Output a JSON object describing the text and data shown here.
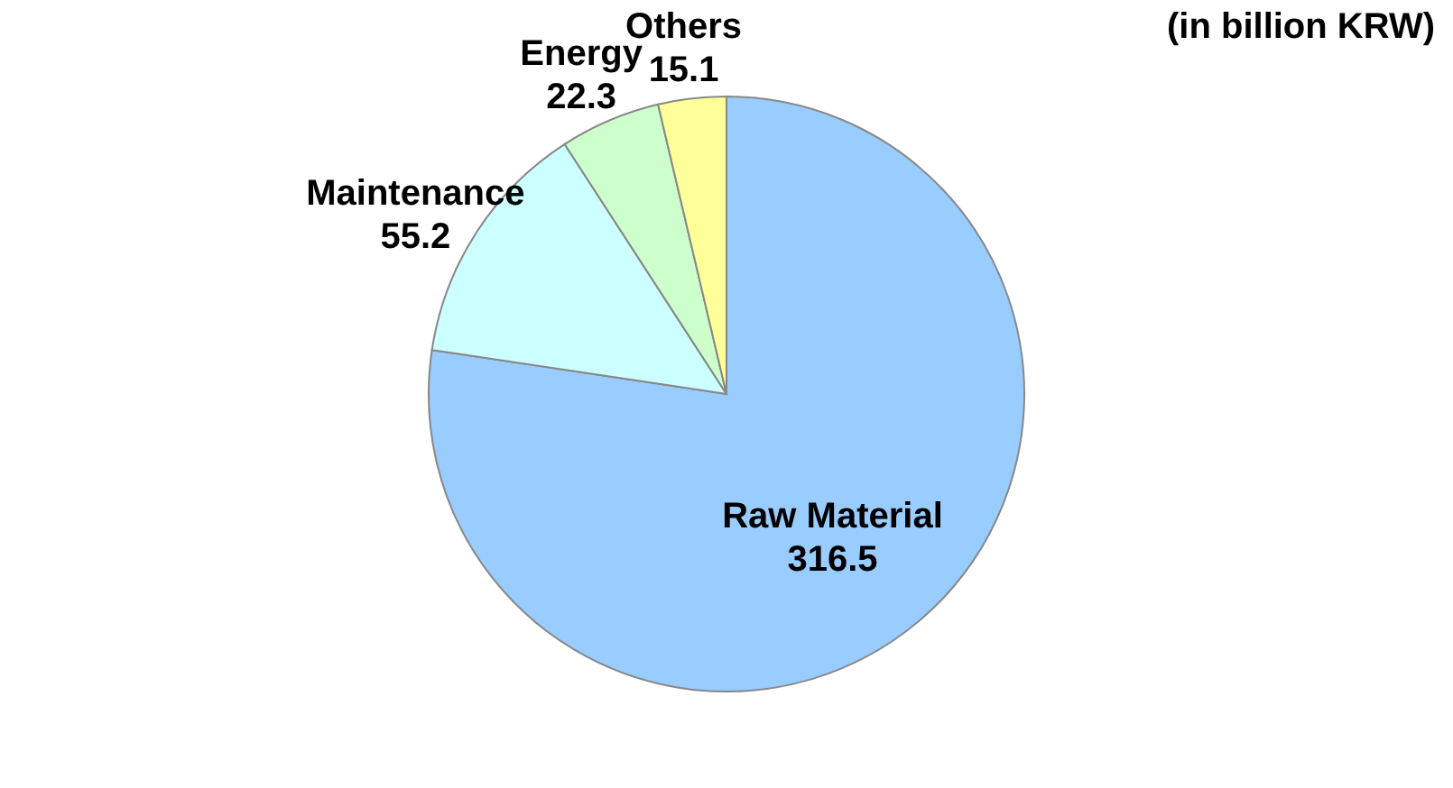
{
  "chart_data": {
    "type": "pie",
    "categories": [
      "Raw Material",
      "Maintenance",
      "Energy",
      "Others"
    ],
    "values": [
      316.5,
      55.2,
      22.3,
      15.1
    ],
    "colors": [
      "#99ccff",
      "#ccffff",
      "#ccffcc",
      "#ffff99"
    ],
    "data_labels": true,
    "annotations": [
      "(in billion KRW)"
    ]
  }
}
